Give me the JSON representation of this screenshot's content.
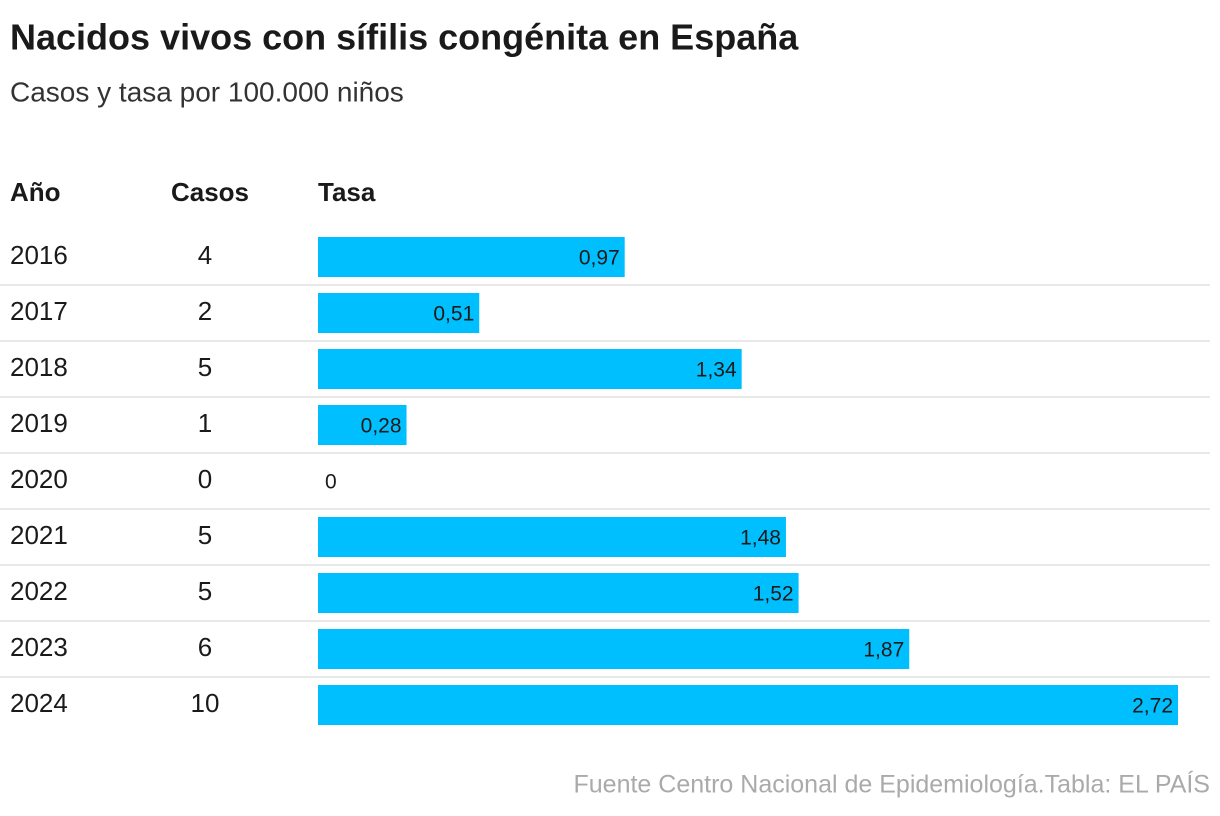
{
  "chart_data": {
    "type": "table-bar",
    "title": "Nacidos vivos con sífilis congénita en España",
    "subtitle": "Casos y tasa por 100.000 niños",
    "columns": [
      "Año",
      "Casos",
      "Tasa"
    ],
    "categories": [
      "2016",
      "2017",
      "2018",
      "2019",
      "2020",
      "2021",
      "2022",
      "2023",
      "2024"
    ],
    "cases": [
      4,
      2,
      5,
      1,
      0,
      5,
      5,
      6,
      10
    ],
    "values": [
      0.97,
      0.51,
      1.34,
      0.28,
      0,
      1.48,
      1.52,
      1.87,
      2.72
    ],
    "value_labels": [
      "0,97",
      "0,51",
      "1,34",
      "0,28",
      "0",
      "1,48",
      "1,52",
      "1,87",
      "2,72"
    ],
    "color": "#00bfff",
    "source": "Fuente Centro Nacional de Epidemiología.Tabla: EL PAÍS"
  }
}
